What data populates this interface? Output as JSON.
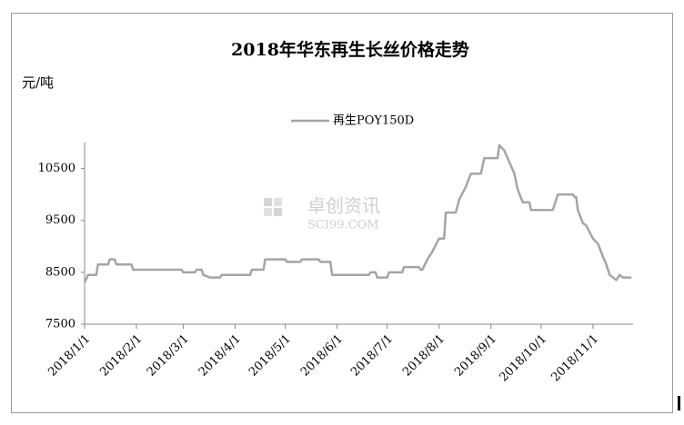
{
  "chart_data": {
    "type": "line",
    "title": "2018年华东再生长丝价格走势",
    "y_label": "元/吨",
    "watermark": {
      "name": "卓创资讯",
      "site": "SCI99.COM"
    },
    "x": [
      "2018/1/1",
      "2018/1/3",
      "2018/1/8",
      "2018/1/9",
      "2018/1/15",
      "2018/1/16",
      "2018/1/19",
      "2018/1/20",
      "2018/1/29",
      "2018/1/30",
      "2018/2/28",
      "2018/3/1",
      "2018/3/8",
      "2018/3/9",
      "2018/3/12",
      "2018/3/13",
      "2018/3/17",
      "2018/3/23",
      "2018/3/24",
      "2018/4/10",
      "2018/4/11",
      "2018/4/18",
      "2018/4/19",
      "2018/5/1",
      "2018/5/2",
      "2018/5/10",
      "2018/5/11",
      "2018/5/21",
      "2018/5/22",
      "2018/5/28",
      "2018/5/29",
      "2018/6/20",
      "2018/6/21",
      "2018/6/24",
      "2018/6/25",
      "2018/7/1",
      "2018/7/2",
      "2018/7/10",
      "2018/7/11",
      "2018/7/20",
      "2018/7/21",
      "2018/7/22",
      "2018/7/25",
      "2018/7/28",
      "2018/8/1",
      "2018/8/4",
      "2018/8/5",
      "2018/8/11",
      "2018/8/13",
      "2018/8/17",
      "2018/8/20",
      "2018/8/26",
      "2018/8/28",
      "2018/9/5",
      "2018/9/6",
      "2018/9/9",
      "2018/9/11",
      "2018/9/15",
      "2018/9/17",
      "2018/9/20",
      "2018/9/24",
      "2018/9/25",
      "2018/10/8",
      "2018/10/11",
      "2018/10/20",
      "2018/10/21",
      "2018/10/22",
      "2018/10/23",
      "2018/10/26",
      "2018/10/28",
      "2018/11/1",
      "2018/11/4",
      "2018/11/7",
      "2018/11/9",
      "2018/11/11",
      "2018/11/15",
      "2018/11/17",
      "2018/11/19",
      "2018/11/24"
    ],
    "series": [
      {
        "name": "再生POY150D",
        "color": "#a5a5a5",
        "values": [
          8300,
          8450,
          8450,
          8650,
          8650,
          8750,
          8750,
          8650,
          8650,
          8550,
          8550,
          8500,
          8500,
          8550,
          8550,
          8450,
          8400,
          8400,
          8450,
          8450,
          8550,
          8550,
          8750,
          8750,
          8700,
          8700,
          8750,
          8750,
          8700,
          8700,
          8450,
          8450,
          8500,
          8500,
          8400,
          8400,
          8500,
          8500,
          8600,
          8600,
          8550,
          8550,
          8750,
          8900,
          9150,
          9150,
          9650,
          9650,
          9900,
          10150,
          10400,
          10400,
          10700,
          10700,
          10950,
          10850,
          10700,
          10400,
          10100,
          9850,
          9850,
          9700,
          9700,
          10000,
          10000,
          9950,
          9950,
          9700,
          9450,
          9400,
          9150,
          9050,
          8800,
          8650,
          8450,
          8350,
          8450,
          8400,
          8400
        ]
      }
    ],
    "xlim": [
      "2018/1/1",
      "2018/11/25"
    ],
    "xticks": [
      "2018/1/1",
      "2018/2/1",
      "2018/3/1",
      "2018/4/1",
      "2018/5/1",
      "2018/6/1",
      "2018/7/1",
      "2018/8/1",
      "2018/9/1",
      "2018/10/1",
      "2018/11/1"
    ],
    "ylim": [
      7500,
      11000
    ],
    "yticks": [
      7500,
      8500,
      9500,
      10500
    ],
    "grid": false,
    "legend": "top"
  }
}
